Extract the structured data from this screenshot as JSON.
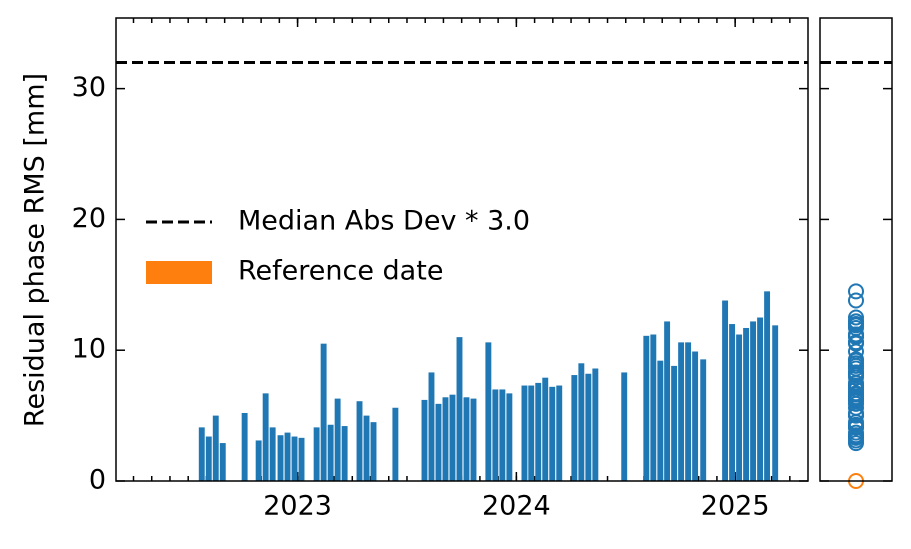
{
  "chart_data": {
    "type": "bar",
    "ylabel": "Residual phase RMS [mm]",
    "x": [
      2022.562,
      2022.594,
      2022.626,
      2022.658,
      2022.758,
      2022.822,
      2022.854,
      2022.886,
      2022.922,
      2022.954,
      2022.986,
      2023.018,
      2023.087,
      2023.119,
      2023.151,
      2023.183,
      2023.215,
      2023.283,
      2023.315,
      2023.347,
      2023.447,
      2023.58,
      2023.612,
      2023.644,
      2023.676,
      2023.708,
      2023.74,
      2023.772,
      2023.804,
      2023.872,
      2023.904,
      2023.936,
      2023.968,
      2024.037,
      2024.068,
      2024.1,
      2024.132,
      2024.164,
      2024.196,
      2024.265,
      2024.297,
      2024.329,
      2024.361,
      2024.493,
      2024.594,
      2024.626,
      2024.658,
      2024.689,
      2024.721,
      2024.753,
      2024.785,
      2024.817,
      2024.854,
      2024.954,
      2024.986,
      2025.018,
      2025.05,
      2025.082,
      2025.114,
      2025.146,
      2025.183
    ],
    "series": [
      {
        "name": "Residual phase RMS",
        "color": "#1f77b4",
        "values": [
          4.1,
          3.4,
          5.0,
          2.9,
          5.2,
          3.1,
          6.7,
          4.1,
          3.5,
          3.7,
          3.4,
          3.3,
          4.1,
          10.5,
          4.3,
          6.3,
          4.2,
          6.1,
          5.0,
          4.5,
          5.6,
          6.2,
          8.3,
          5.9,
          6.4,
          6.6,
          11.0,
          6.4,
          6.3,
          10.6,
          7.0,
          7.0,
          6.7,
          7.3,
          7.3,
          7.5,
          7.9,
          7.2,
          7.3,
          8.1,
          9.0,
          8.2,
          8.6,
          8.3,
          11.1,
          11.2,
          9.2,
          12.2,
          8.8,
          10.6,
          10.6,
          9.9,
          9.3,
          13.8,
          12.0,
          11.2,
          11.7,
          12.2,
          12.5,
          14.5,
          11.9
        ]
      }
    ],
    "reference": {
      "name": "Reference date",
      "color": "#ff7f0e",
      "value": 0
    },
    "threshold": {
      "name": "Median Abs Dev * 3.0",
      "value": 32
    },
    "xlim": [
      2022.17,
      2025.333
    ],
    "xticks": [
      2023,
      2024,
      2025
    ],
    "ylim": [
      0,
      35.4
    ],
    "yticks": [
      0,
      10,
      20,
      30
    ]
  }
}
